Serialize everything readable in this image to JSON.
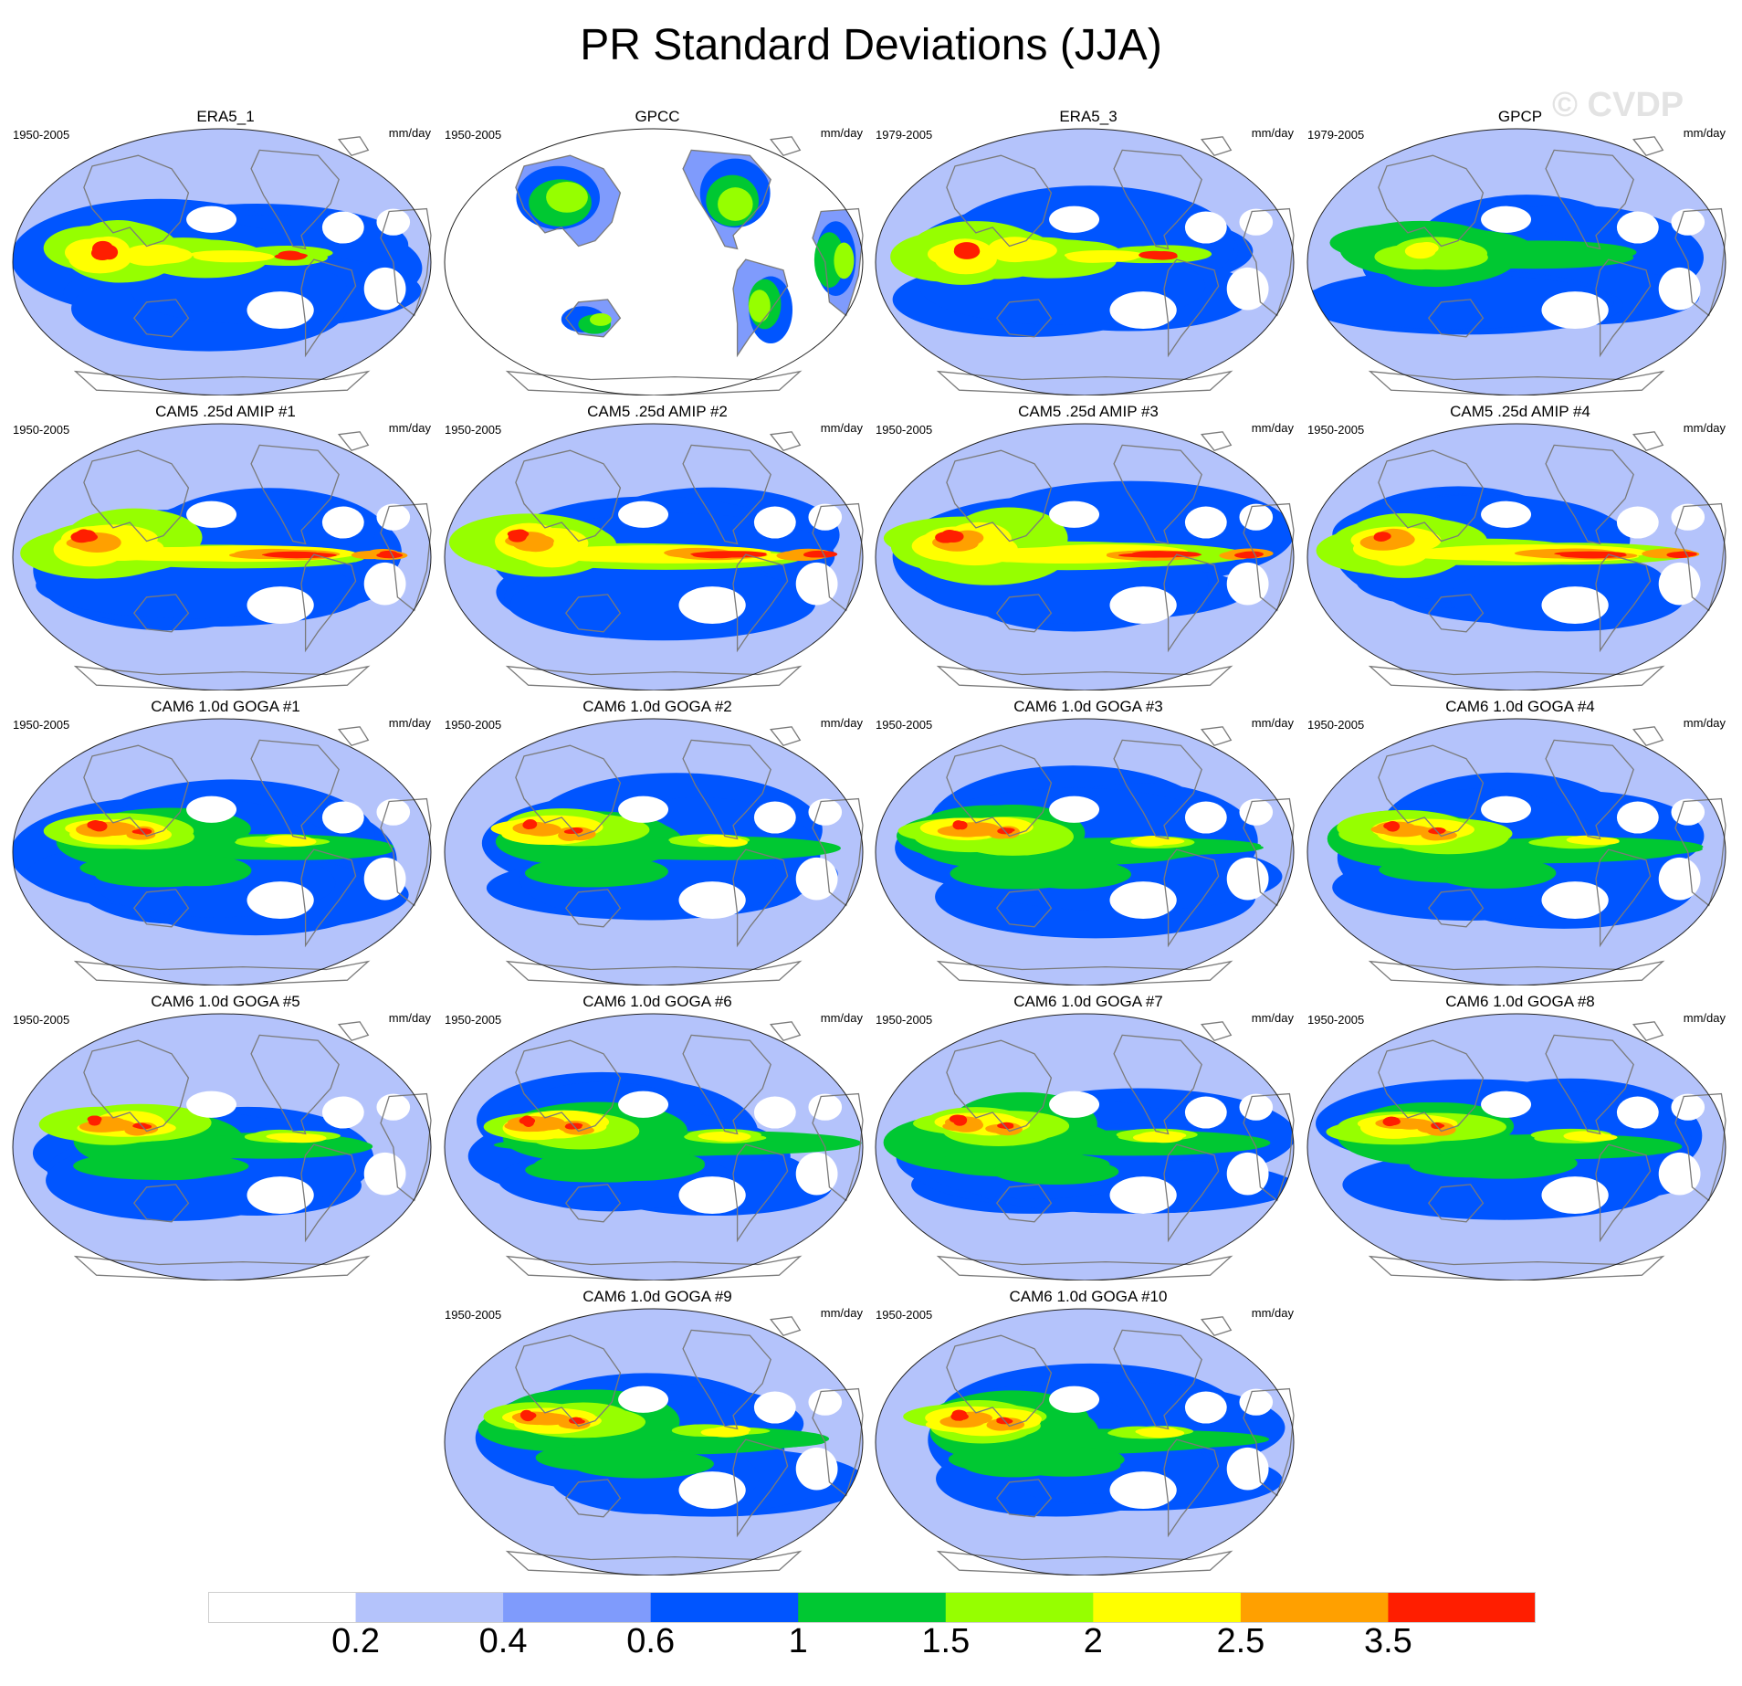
{
  "title": "PR Standard Deviations (JJA)",
  "watermark": "© CVDP",
  "panels": [
    {
      "name": "ERA5_1",
      "years": "1950-2005",
      "units": "mm/day"
    },
    {
      "name": "GPCC",
      "years": "1950-2005",
      "units": "mm/day"
    },
    {
      "name": "ERA5_3",
      "years": "1979-2005",
      "units": "mm/day"
    },
    {
      "name": "GPCP",
      "years": "1979-2005",
      "units": "mm/day"
    },
    {
      "name": "CAM5 .25d AMIP #1",
      "years": "1950-2005",
      "units": "mm/day"
    },
    {
      "name": "CAM5 .25d AMIP #2",
      "years": "1950-2005",
      "units": "mm/day"
    },
    {
      "name": "CAM5 .25d AMIP #3",
      "years": "1950-2005",
      "units": "mm/day"
    },
    {
      "name": "CAM5 .25d AMIP #4",
      "years": "1950-2005",
      "units": "mm/day"
    },
    {
      "name": "CAM6 1.0d GOGA #1",
      "years": "1950-2005",
      "units": "mm/day"
    },
    {
      "name": "CAM6 1.0d GOGA #2",
      "years": "1950-2005",
      "units": "mm/day"
    },
    {
      "name": "CAM6 1.0d GOGA #3",
      "years": "1950-2005",
      "units": "mm/day"
    },
    {
      "name": "CAM6 1.0d GOGA #4",
      "years": "1950-2005",
      "units": "mm/day"
    },
    {
      "name": "CAM6 1.0d GOGA #5",
      "years": "1950-2005",
      "units": "mm/day"
    },
    {
      "name": "CAM6 1.0d GOGA #6",
      "years": "1950-2005",
      "units": "mm/day"
    },
    {
      "name": "CAM6 1.0d GOGA #7",
      "years": "1950-2005",
      "units": "mm/day"
    },
    {
      "name": "CAM6 1.0d GOGA #8",
      "years": "1950-2005",
      "units": "mm/day"
    },
    {
      "name": "CAM6 1.0d GOGA #9",
      "years": "1950-2005",
      "units": "mm/day"
    },
    {
      "name": "CAM6 1.0d GOGA #10",
      "years": "1950-2005",
      "units": "mm/day"
    }
  ],
  "chart_data": {
    "type": "heatmap",
    "title": "PR Standard Deviations (JJA)",
    "units": "mm/day",
    "projection": "robinson, pacific-centered global",
    "colorbar": {
      "levels": [
        "0.2",
        "0.4",
        "0.6",
        "1",
        "1.5",
        "2",
        "2.5",
        "3.5"
      ],
      "colors": [
        "#ffffff",
        "#b4c3fb",
        "#7f9bfc",
        "#0055ff",
        "#00c832",
        "#96ff00",
        "#ffff00",
        "#ffa000",
        "#ff1e00"
      ]
    }
  }
}
